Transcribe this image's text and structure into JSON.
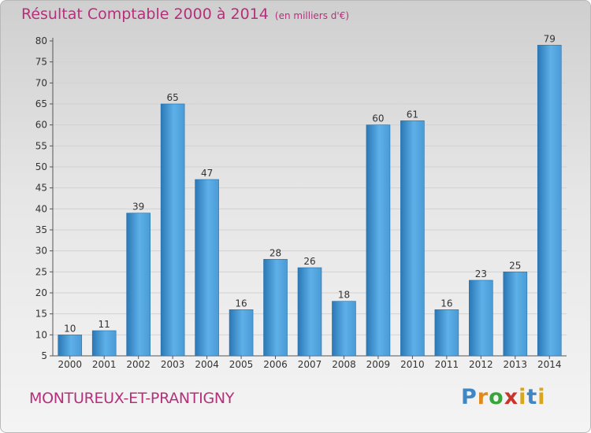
{
  "title": "Résultat Comptable 2000 à 2014",
  "unit_note": "(en milliers d'€)",
  "commune": "MONTUREUX-ET-PRANTIGNY",
  "brand": "Proxiti",
  "colors": {
    "title": "#b5307a",
    "bar_dark": "#2a78b6",
    "bar_light": "#5eb0e8",
    "axis": "#555555"
  },
  "chart_data": {
    "type": "bar",
    "title": "Résultat Comptable 2000 à 2014",
    "ylabel": "en milliers d'€",
    "xlabel": "",
    "categories": [
      "2000",
      "2001",
      "2002",
      "2003",
      "2004",
      "2005",
      "2006",
      "2007",
      "2008",
      "2009",
      "2010",
      "2011",
      "2012",
      "2013",
      "2014"
    ],
    "values": [
      10,
      11,
      39,
      65,
      47,
      16,
      28,
      26,
      18,
      60,
      61,
      16,
      23,
      25,
      79
    ],
    "ylim": [
      5,
      80
    ],
    "yticks": [
      5,
      10,
      15,
      20,
      25,
      30,
      35,
      40,
      45,
      50,
      55,
      60,
      65,
      70,
      75,
      80
    ],
    "grid": true
  }
}
